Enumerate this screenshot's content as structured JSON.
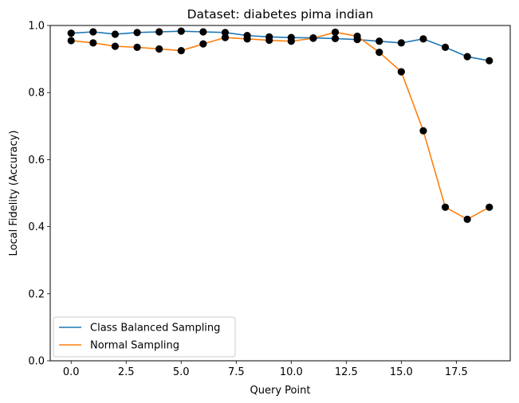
{
  "chart_data": {
    "type": "line",
    "title": "Dataset: diabetes pima indian",
    "xlabel": "Query Point",
    "ylabel": "Local Fidelity (Accuracy)",
    "xlim": [
      -0.95,
      19.95
    ],
    "ylim": [
      0.0,
      1.0
    ],
    "xticks": [
      0.0,
      2.5,
      5.0,
      7.5,
      10.0,
      12.5,
      15.0,
      17.5
    ],
    "xtick_labels": [
      "0.0",
      "2.5",
      "5.0",
      "7.5",
      "10.0",
      "12.5",
      "15.0",
      "17.5"
    ],
    "yticks": [
      0.0,
      0.2,
      0.4,
      0.6,
      0.8,
      1.0
    ],
    "ytick_labels": [
      "0.0",
      "0.2",
      "0.4",
      "0.6",
      "0.8",
      "1.0"
    ],
    "grid": false,
    "legend_position": "lower-left",
    "marker_color": "#000000",
    "x": [
      0,
      1,
      2,
      3,
      4,
      5,
      6,
      7,
      8,
      9,
      10,
      11,
      12,
      13,
      14,
      15,
      16,
      17,
      18,
      19
    ],
    "series": [
      {
        "name": "Class Balanced Sampling",
        "color": "#1f77b4",
        "values": [
          0.977,
          0.981,
          0.974,
          0.979,
          0.981,
          0.983,
          0.981,
          0.979,
          0.97,
          0.966,
          0.964,
          0.963,
          0.961,
          0.958,
          0.953,
          0.948,
          0.96,
          0.935,
          0.907,
          0.895
        ]
      },
      {
        "name": "Normal Sampling",
        "color": "#ff7f0e",
        "values": [
          0.955,
          0.948,
          0.938,
          0.935,
          0.93,
          0.925,
          0.945,
          0.964,
          0.96,
          0.956,
          0.953,
          0.962,
          0.98,
          0.968,
          0.92,
          0.862,
          0.686,
          0.458,
          0.422,
          0.458
        ]
      }
    ]
  }
}
